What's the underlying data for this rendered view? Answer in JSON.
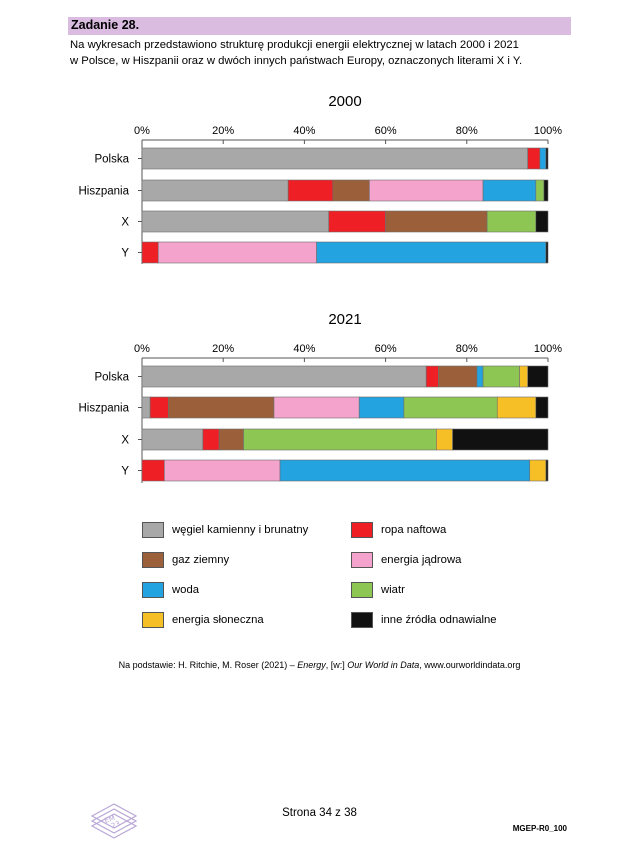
{
  "header": {
    "task_label": "Zadanie 28.",
    "intro_line1": "Na wykresach przedstawiono strukturę produkcji energii elektrycznej w latach 2000 i 2021",
    "intro_line2": "w Polsce, w Hiszpanii oraz w dwóch innych państwach Europy, oznaczonych literami X i Y."
  },
  "colors": {
    "coal": "#a8a8a8",
    "oil": "#ee1f25",
    "gas": "#9b5f3a",
    "nuclear": "#f4a3cd",
    "hydro": "#23a3e0",
    "wind": "#8dc652",
    "solar": "#f7bf26",
    "other": "#111111"
  },
  "chart_data": [
    {
      "type": "bar",
      "orientation": "horizontal",
      "stacked": true,
      "title": "2000",
      "xlim": [
        0,
        100
      ],
      "x_ticks": [
        "0%",
        "20%",
        "40%",
        "60%",
        "80%",
        "100%"
      ],
      "categories": [
        "Polska",
        "Hiszpania",
        "X",
        "Y"
      ],
      "series": [
        {
          "name": "coal",
          "values": [
            95,
            36,
            46,
            0
          ]
        },
        {
          "name": "oil",
          "values": [
            3,
            11,
            14,
            4
          ]
        },
        {
          "name": "gas",
          "values": [
            0,
            9,
            25,
            0
          ]
        },
        {
          "name": "nuclear",
          "values": [
            0,
            28,
            0,
            39
          ]
        },
        {
          "name": "hydro",
          "values": [
            1.5,
            13,
            0,
            56.5
          ]
        },
        {
          "name": "wind",
          "values": [
            0,
            2,
            12,
            0
          ]
        },
        {
          "name": "solar",
          "values": [
            0,
            0,
            0,
            0
          ]
        },
        {
          "name": "other",
          "values": [
            0.5,
            1,
            3,
            0.5
          ]
        }
      ]
    },
    {
      "type": "bar",
      "orientation": "horizontal",
      "stacked": true,
      "title": "2021",
      "xlim": [
        0,
        100
      ],
      "x_ticks": [
        "0%",
        "20%",
        "40%",
        "60%",
        "80%",
        "100%"
      ],
      "categories": [
        "Polska",
        "Hiszpania",
        "X",
        "Y"
      ],
      "series": [
        {
          "name": "coal",
          "values": [
            70,
            2,
            15,
            0
          ]
        },
        {
          "name": "oil",
          "values": [
            3,
            4.5,
            4,
            5.5
          ]
        },
        {
          "name": "gas",
          "values": [
            9.5,
            26,
            6,
            0
          ]
        },
        {
          "name": "nuclear",
          "values": [
            0,
            21,
            0,
            28.5
          ]
        },
        {
          "name": "hydro",
          "values": [
            1.5,
            11,
            0,
            61.5
          ]
        },
        {
          "name": "wind",
          "values": [
            9,
            23,
            47.5,
            0
          ]
        },
        {
          "name": "solar",
          "values": [
            2,
            9.5,
            4,
            4
          ]
        },
        {
          "name": "other",
          "values": [
            5,
            3,
            23.5,
            0.5
          ]
        }
      ]
    }
  ],
  "legend": [
    {
      "key": "coal",
      "label": "węgiel kamienny i brunatny"
    },
    {
      "key": "oil",
      "label": "ropa naftowa"
    },
    {
      "key": "gas",
      "label": "gaz ziemny"
    },
    {
      "key": "nuclear",
      "label": "energia jądrowa"
    },
    {
      "key": "hydro",
      "label": "woda"
    },
    {
      "key": "wind",
      "label": "wiatr"
    },
    {
      "key": "solar",
      "label": "energia słoneczna"
    },
    {
      "key": "other",
      "label": "inne źródła odnawialne"
    }
  ],
  "source": {
    "prefix": "Na podstawie: H. Ritchie, M. Roser (2021) – ",
    "title": "Energy",
    "middle": ", [w:] ",
    "publication": "Our World in Data",
    "suffix": ", www.ourworldindata.org"
  },
  "footer": {
    "page": "Strona 34 z 38",
    "code": "MGEP-R0_100"
  }
}
